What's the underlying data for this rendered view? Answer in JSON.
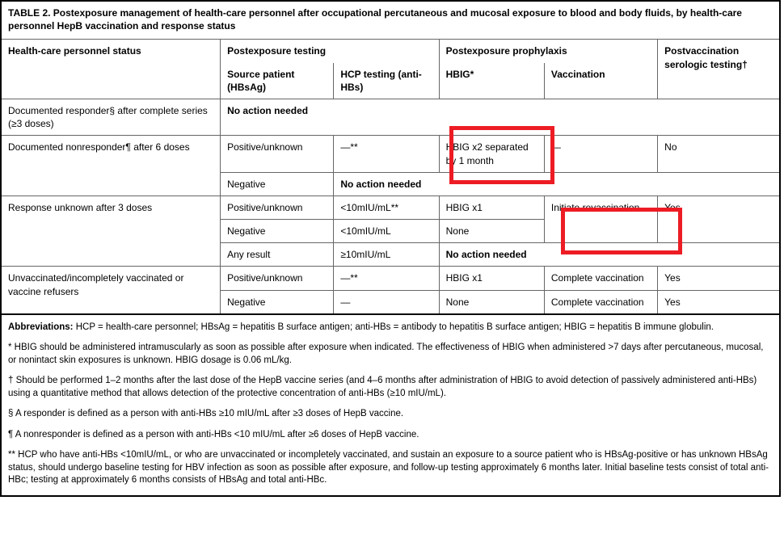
{
  "table": {
    "title": "TABLE 2. Postexposure management of health-care personnel after occupational percutaneous and mucosal exposure to blood and body fluids, by health-care personnel HepB vaccination and response status",
    "header": {
      "col1": "Health-care personnel status",
      "group2": "Postexposure testing",
      "group3": "Postexposure prophylaxis",
      "col6": "Postvaccination serologic testing†",
      "sub_source": "Source patient (HBsAg)",
      "sub_hcp": "HCP testing (anti-HBs)",
      "sub_hbig": "HBIG*",
      "sub_vacc": "Vaccination"
    },
    "rows": {
      "r1": {
        "status": "Documented responder§ after complete series (≥3 doses)",
        "span": "No action needed"
      },
      "r2": {
        "status": "Documented nonresponder¶ after 6 doses",
        "a_source": "Positive/unknown",
        "a_hcp": "—**",
        "a_hbig": "HBIG x2 separated by 1 month",
        "a_vacc": "—",
        "a_test": "No",
        "b_source": "Negative",
        "b_span": "No action needed"
      },
      "r3": {
        "status": "Response unknown after 3 doses",
        "a_source": "Positive/unknown",
        "a_hcp": "<10mIU/mL**",
        "a_hbig": "HBIG x1",
        "a_vacc": "Initiate revaccination",
        "a_test": "Yes",
        "b_source": "Negative",
        "b_hcp": "<10mIU/mL",
        "b_hbig": "None",
        "c_source": "Any result",
        "c_hcp": "≥10mIU/mL",
        "c_span": "No action needed"
      },
      "r4": {
        "status": "Unvaccinated/incompletely vaccinated or vaccine refusers",
        "a_source": "Positive/unknown",
        "a_hcp": "—**",
        "a_hbig": "HBIG x1",
        "a_vacc": "Complete vaccination",
        "a_test": "Yes",
        "b_source": "Negative",
        "b_hcp": "—",
        "b_hbig": "None",
        "b_vacc": "Complete vaccination",
        "b_test": "Yes"
      }
    }
  },
  "footnotes": {
    "abbr_label": "Abbreviations:",
    "abbr_text": " HCP = health-care personnel; HBsAg = hepatitis B surface antigen; anti-HBs = antibody to hepatitis B surface antigen; HBIG = hepatitis B immune globulin.",
    "star": "  * HBIG should be administered intramuscularly as soon as possible after exposure when indicated. The effectiveness of HBIG when administered >7 days after percutaneous, mucosal, or nonintact skin exposures is unknown. HBIG dosage is 0.06 mL/kg.",
    "dagger": "  † Should be performed 1–2 months after the last dose of the HepB vaccine series (and 4–6 months after administration of HBIG to avoid detection of passively administered anti-HBs) using a quantitative method that allows detection of the protective concentration of anti-HBs (≥10 mIU/mL).",
    "section": "  § A responder is defined as a person with anti-HBs ≥10 mIU/mL after ≥3 doses of HepB vaccine.",
    "pilcrow": "  ¶ A nonresponder is defined as a person with anti-HBs <10 mIU/mL after ≥6 doses of HepB vaccine.",
    "dstar": "  ** HCP who have anti-HBs <10mIU/mL, or who are unvaccinated or incompletely vaccinated, and sustain an exposure to a source patient who is HBsAg-positive or has unknown HBsAg status, should undergo baseline testing for HBV infection as soon as possible after exposure, and follow-up testing approximately 6 months later. Initial baseline tests consist of total anti-HBc; testing at approximately 6 months consists of HBsAg and total anti-HBc."
  },
  "highlight_color": "#ed1c24"
}
